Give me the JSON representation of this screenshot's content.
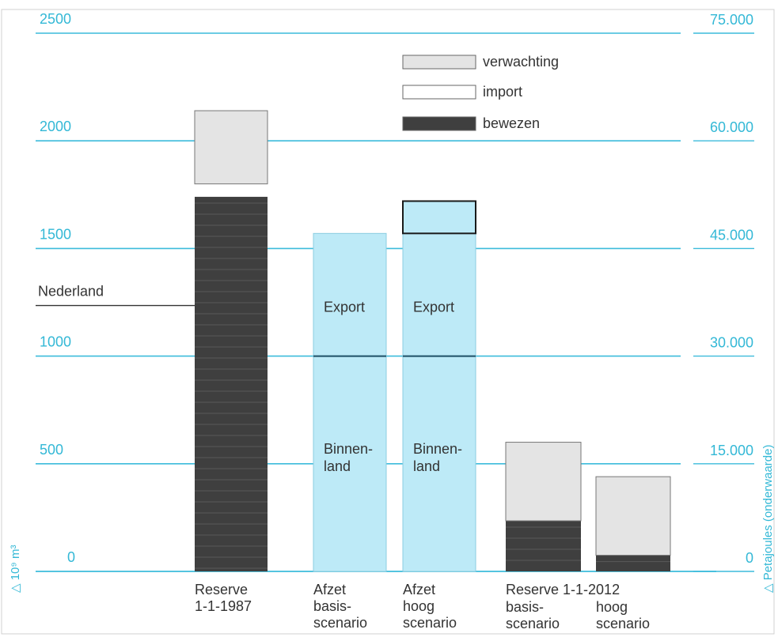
{
  "chart_data": {
    "type": "bar",
    "stacked": true,
    "colors": {
      "grid": "#3cbbdb",
      "bewezen": "#3f3f3f",
      "verwachting": "#e4e4e4",
      "import": "#ffffff",
      "afzet": "#bdeaf7"
    },
    "axes": {
      "left_label": "△ 10⁹ m³",
      "right_label": "△ Petajoules (onderwaarde)",
      "left_range": [
        0,
        2500
      ],
      "right_range": [
        0,
        75000
      ]
    },
    "left_ticks": [
      {
        "value": 0,
        "label": "0"
      },
      {
        "value": 500,
        "label": "500"
      },
      {
        "value": 1000,
        "label": "1000"
      },
      {
        "value": 1500,
        "label": "1500"
      },
      {
        "value": 2000,
        "label": "2000"
      },
      {
        "value": 2500,
        "label": "2500"
      }
    ],
    "right_ticks": [
      {
        "value": 0,
        "label": "0"
      },
      {
        "value": 15000,
        "label": "15.000"
      },
      {
        "value": 30000,
        "label": "30.000"
      },
      {
        "value": 45000,
        "label": "45.000"
      },
      {
        "value": 60000,
        "label": "60.000"
      },
      {
        "value": 75000,
        "label": "75.000"
      }
    ],
    "legend": {
      "position": "top-right",
      "items": [
        {
          "key": "verwachting",
          "label": "verwachting"
        },
        {
          "key": "import",
          "label": "import"
        },
        {
          "key": "bewezen",
          "label": "bewezen"
        }
      ]
    },
    "bars": [
      {
        "id": "reserve-1987",
        "label_lines": [
          "Reserve",
          "1-1-1987"
        ],
        "segments": [
          {
            "type": "bewezen",
            "value": 1740
          },
          {
            "type": "import",
            "value": 60
          },
          {
            "type": "verwachting",
            "value": 340
          }
        ]
      },
      {
        "id": "afzet-basis",
        "label_lines": [
          "Afzet",
          "basis-",
          "scenario"
        ],
        "segments": [
          {
            "type": "afzet",
            "value": 1000,
            "text_lines": [
              "Binnen-",
              "land"
            ]
          },
          {
            "type": "afzet",
            "value": 570,
            "text_lines": [
              "Export"
            ]
          }
        ]
      },
      {
        "id": "afzet-hoog",
        "label_lines": [
          "Afzet",
          "hoog",
          "scenario"
        ],
        "segments": [
          {
            "type": "afzet",
            "value": 1000,
            "text_lines": [
              "Binnen-",
              "land"
            ]
          },
          {
            "type": "afzet",
            "value": 570,
            "text_lines": [
              "Export"
            ]
          },
          {
            "type": "afzet-outlined",
            "value": 150
          }
        ]
      },
      {
        "id": "reserve-2012-basis",
        "label_lines": [
          "basis-",
          "scenario"
        ],
        "segments": [
          {
            "type": "bewezen",
            "value": 235
          },
          {
            "type": "verwachting",
            "value": 365
          }
        ]
      },
      {
        "id": "reserve-2012-hoog",
        "label_lines": [
          "hoog",
          "scenario"
        ],
        "segments": [
          {
            "type": "bewezen",
            "value": 75
          },
          {
            "type": "verwachting",
            "value": 365
          }
        ]
      }
    ],
    "group_label": "Reserve 1-1-2012",
    "annotation": {
      "label": "Nederland",
      "value": 1235
    }
  }
}
